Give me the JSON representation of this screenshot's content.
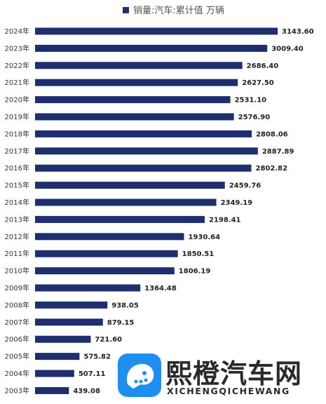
{
  "chart_data": {
    "type": "bar",
    "orientation": "horizontal",
    "legend": {
      "label": "销量:汽车:累计值 万辆",
      "position": "top"
    },
    "color": "#1f2f6e",
    "categories": [
      "2024年",
      "2023年",
      "2022年",
      "2021年",
      "2020年",
      "2019年",
      "2018年",
      "2017年",
      "2016年",
      "2015年",
      "2014年",
      "2013年",
      "2012年",
      "2011年",
      "2010年",
      "2009年",
      "2008年",
      "2007年",
      "2006年",
      "2005年",
      "2004年",
      "2003年"
    ],
    "values": [
      3143.6,
      3009.4,
      2686.4,
      2627.5,
      2531.1,
      2576.9,
      2808.06,
      2887.89,
      2802.82,
      2459.76,
      2349.19,
      2198.41,
      1930.64,
      1850.51,
      1806.19,
      1364.48,
      938.05,
      879.15,
      721.6,
      575.82,
      507.11,
      439.08
    ],
    "data_labels": [
      "3143.60",
      "3009.40",
      "2686.40",
      "2627.50",
      "2531.10",
      "2576.90",
      "2808.06",
      "2887.89",
      "2802.82",
      "2459.76",
      "2349.19",
      "2198.41",
      "1930.64",
      "1850.51",
      "1806.19",
      "1364.48",
      "938.05",
      "879.15",
      "721.60",
      "575.82",
      "507.11",
      "439.08"
    ],
    "grid": false
  },
  "watermark": {
    "title": "熙橙汽车网",
    "subtitle": "XICHENGQICHEWANG",
    "icon": "app-logo-icon"
  }
}
